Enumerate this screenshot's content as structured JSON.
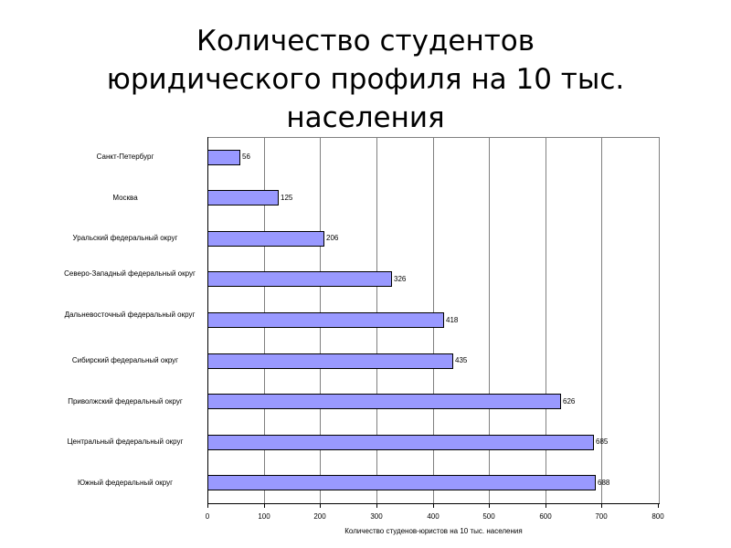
{
  "title_lines": [
    "Количество студентов",
    "юридического профиля на 10 тыс.",
    "населения"
  ],
  "chart_data": {
    "type": "bar",
    "orientation": "horizontal",
    "title": "Количество студентов юридического профиля на 10 тыс. населения",
    "xlabel": "Количество студенов-юристов на 10 тыс. населения",
    "ylabel": "",
    "xlim": [
      0,
      800
    ],
    "xticks": [
      0,
      100,
      200,
      300,
      400,
      500,
      600,
      700,
      800
    ],
    "grid": "vertical",
    "legend": "none",
    "bar_color": "#9999ff",
    "categories": [
      "Санкт-Петербург",
      "Москва",
      "Уральский федеральный округ",
      "Северо-Западный федеральный округ",
      "Дальневосточный федеральный округ",
      "Сибирский федеральный округ",
      "Приволжский федеральный округ",
      "Центральный федеральный округ",
      "Южный федеральный округ"
    ],
    "values": [
      56,
      125,
      206,
      326,
      418,
      435,
      626,
      685,
      688
    ],
    "data_labels": [
      "56",
      "125",
      "206",
      "326",
      "418",
      "435",
      "626",
      "685",
      "688"
    ]
  }
}
